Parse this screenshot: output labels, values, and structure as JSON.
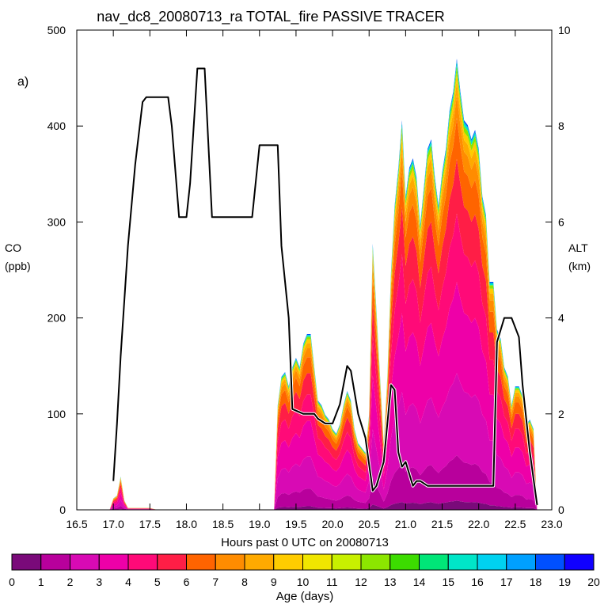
{
  "chart_data": {
    "type": "area",
    "title": "nav_dc8_20080713_ra TOTAL_fire PASSIVE TRACER",
    "panel_label": "a)",
    "xlabel": "Hours past 0 UTC on 20080713",
    "ylabel_left": [
      "CO",
      "(ppb)"
    ],
    "ylabel_right": [
      "ALT",
      "(km)"
    ],
    "xlim": [
      16.5,
      23.0
    ],
    "ylim_left": [
      0,
      500
    ],
    "ylim_right": [
      0,
      10
    ],
    "x_ticks": [
      "16.5",
      "17.0",
      "17.5",
      "18.0",
      "18.5",
      "19.0",
      "19.5",
      "20.0",
      "20.5",
      "21.0",
      "21.5",
      "22.0",
      "22.5",
      "23.0"
    ],
    "y_ticks_left": [
      "0",
      "100",
      "200",
      "300",
      "400",
      "500"
    ],
    "y_ticks_right": [
      "0",
      "2",
      "4",
      "6",
      "8",
      "10"
    ],
    "colorbar": {
      "label": "Age (days)",
      "ticks": [
        "0",
        "1",
        "2",
        "3",
        "4",
        "5",
        "6",
        "7",
        "8",
        "9",
        "10",
        "11",
        "12",
        "13",
        "14",
        "15",
        "16",
        "17",
        "18",
        "19",
        "20"
      ],
      "colors": [
        "#7a0a7a",
        "#b8009c",
        "#d80ab4",
        "#ee00a8",
        "#ff0a78",
        "#ff1e46",
        "#ff6400",
        "#ff8c00",
        "#ffaa00",
        "#ffcc00",
        "#f0e600",
        "#c8f000",
        "#8ce600",
        "#3cdc00",
        "#00e678",
        "#00e6c8",
        "#00d2f0",
        "#00a0ff",
        "#0050ff",
        "#1000ff",
        "#6400ff"
      ]
    },
    "co_total": {
      "x": [
        16.95,
        17.0,
        17.05,
        17.1,
        17.15,
        17.2,
        17.3,
        17.5,
        17.6,
        19.2,
        19.25,
        19.3,
        19.35,
        19.4,
        19.45,
        19.5,
        19.55,
        19.6,
        19.65,
        19.7,
        19.75,
        19.8,
        19.85,
        19.9,
        19.95,
        20.0,
        20.05,
        20.1,
        20.15,
        20.2,
        20.25,
        20.3,
        20.35,
        20.4,
        20.45,
        20.5,
        20.55,
        20.6,
        20.65,
        20.7,
        20.75,
        20.8,
        20.85,
        20.9,
        20.95,
        21.0,
        21.05,
        21.1,
        21.15,
        21.2,
        21.25,
        21.3,
        21.35,
        21.4,
        21.45,
        21.5,
        21.55,
        21.6,
        21.65,
        21.7,
        21.75,
        21.8,
        21.85,
        21.9,
        21.95,
        22.0,
        22.05,
        22.1,
        22.15,
        22.2,
        22.25,
        22.3,
        22.35,
        22.4,
        22.45,
        22.5,
        22.55,
        22.6,
        22.65,
        22.7,
        22.75,
        22.8
      ],
      "y": [
        0,
        12,
        15,
        35,
        10,
        2,
        2,
        2,
        0,
        0,
        110,
        140,
        145,
        130,
        150,
        160,
        150,
        175,
        185,
        185,
        150,
        115,
        110,
        100,
        95,
        85,
        80,
        90,
        110,
        125,
        115,
        85,
        70,
        65,
        60,
        100,
        280,
        210,
        140,
        70,
        140,
        250,
        320,
        360,
        410,
        330,
        360,
        370,
        350,
        300,
        340,
        380,
        390,
        350,
        320,
        355,
        380,
        420,
        440,
        475,
        440,
        410,
        405,
        390,
        400,
        380,
        330,
        310,
        240,
        240,
        190,
        180,
        150,
        140,
        110,
        130,
        130,
        120,
        90,
        95,
        85,
        0
      ],
      "fractions": [
        {
          "age": "0-1",
          "share": 0.02
        },
        {
          "age": "1-2",
          "share": 0.1
        },
        {
          "age": "2-3",
          "share": 0.18
        },
        {
          "age": "3-4",
          "share": 0.2
        },
        {
          "age": "4-5",
          "share": 0.15
        },
        {
          "age": "5-6",
          "share": 0.12
        },
        {
          "age": "6-7",
          "share": 0.09
        },
        {
          "age": "7-8",
          "share": 0.05
        },
        {
          "age": "8-9",
          "share": 0.03
        },
        {
          "age": "9-10",
          "share": 0.02
        },
        {
          "age": "10-14",
          "share": 0.015
        },
        {
          "age": "14-17",
          "share": 0.01
        },
        {
          "age": "17-20",
          "share": 0.005
        }
      ]
    },
    "altitude_km": {
      "x": [
        17.0,
        17.05,
        17.1,
        17.2,
        17.3,
        17.4,
        17.45,
        17.5,
        17.6,
        17.75,
        17.8,
        17.9,
        18.0,
        18.05,
        18.15,
        18.25,
        18.35,
        18.45,
        18.6,
        18.8,
        18.9,
        19.0,
        19.05,
        19.15,
        19.25,
        19.3,
        19.4,
        19.45,
        19.6,
        19.7,
        19.75,
        19.8,
        19.9,
        20.0,
        20.1,
        20.2,
        20.25,
        20.35,
        20.45,
        20.55,
        20.6,
        20.7,
        20.8,
        20.85,
        20.9,
        20.95,
        21.0,
        21.1,
        21.15,
        21.2,
        21.3,
        21.4,
        21.5,
        21.6,
        21.7,
        21.8,
        21.9,
        22.0,
        22.1,
        22.2,
        22.25,
        22.35,
        22.45,
        22.55,
        22.6,
        22.7,
        22.8
      ],
      "y": [
        0.6,
        1.8,
        3.2,
        5.5,
        7.2,
        8.5,
        8.6,
        8.6,
        8.6,
        8.6,
        8.0,
        6.1,
        6.1,
        6.8,
        9.2,
        9.2,
        6.1,
        6.1,
        6.1,
        6.1,
        6.1,
        7.6,
        7.6,
        7.6,
        7.6,
        5.5,
        4.0,
        2.1,
        2.0,
        2.0,
        2.0,
        1.9,
        1.8,
        1.8,
        2.2,
        3.0,
        2.9,
        2.0,
        1.5,
        0.4,
        0.5,
        1.0,
        2.6,
        2.5,
        1.2,
        0.9,
        1.0,
        0.5,
        0.6,
        0.6,
        0.5,
        0.5,
        0.5,
        0.5,
        0.5,
        0.5,
        0.5,
        0.5,
        0.5,
        0.5,
        3.5,
        4.0,
        4.0,
        3.6,
        2.6,
        1.2,
        0.1
      ]
    }
  }
}
